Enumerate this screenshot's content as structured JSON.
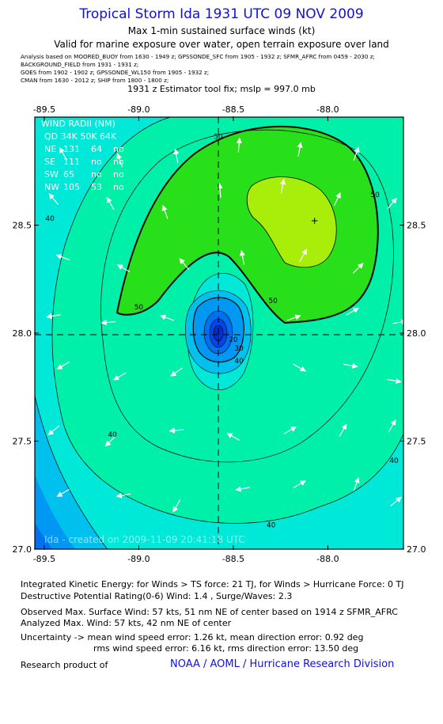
{
  "header": {
    "title": "Tropical Storm Ida 1931 UTC 09 NOV 2009",
    "subtitle1": "Max 1-min sustained surface winds (kt)",
    "subtitle2": "Valid for marine exposure over water, open terrain exposure over land",
    "sources": [
      "Analysis based on  MOORED_BUOY from 1630 - 1949 z;  GPSSONDE_SFC from 1905 - 1932 z;  SFMR_AFRC from 0459 - 2030 z;",
      "BACKGROUND_FIELD from 1931 - 1931 z;",
      "GOES from 1902 - 1902 z;  GPSSONDE_WL150 from 1905 - 1932 z;",
      "CMAN from 1630 - 2012 z;  SHIP from 1800 - 1800 z;"
    ],
    "fix_line": "1931 z Estimator tool fix; mslp = 997.0 mb"
  },
  "wind_radii": {
    "header": "WIND RADII (NM)",
    "columns": "QD  34K  50K  64K",
    "rows": [
      {
        "qd": "NE",
        "k34": "131",
        "k50": "64",
        "k64": "no"
      },
      {
        "qd": "SE",
        "k34": "111",
        "k50": "no",
        "k64": "no"
      },
      {
        "qd": "SW",
        "k34": "65",
        "k50": "no",
        "k64": "no"
      },
      {
        "qd": "NW",
        "k34": "105",
        "k50": "53",
        "k64": "no"
      }
    ]
  },
  "watermark": "Ida - created on 2009-11-09 20:41:18 UTC",
  "chart_data": {
    "type": "heatmap",
    "xlim": [
      -89.55,
      -87.6
    ],
    "ylim": [
      27.0,
      29.0
    ],
    "x_ticks": [
      "-89.5",
      "-89.0",
      "-88.5",
      "-88.0"
    ],
    "y_ticks": [
      "27.0",
      "27.5",
      "28.0",
      "28.5"
    ],
    "center": {
      "lon": -88.5,
      "lat": 28.0
    },
    "max_wind_marker": {
      "lon": -88.07,
      "lat": 28.52
    },
    "contour_labels": [
      {
        "text": "50",
        "lon": -88.58,
        "lat": 28.9
      },
      {
        "text": "50",
        "lon": -87.75,
        "lat": 28.63
      },
      {
        "text": "50",
        "lon": -89.0,
        "lat": 28.11
      },
      {
        "text": "50",
        "lon": -88.29,
        "lat": 28.14
      },
      {
        "text": "40",
        "lon": -89.47,
        "lat": 28.52
      },
      {
        "text": "40",
        "lon": -89.14,
        "lat": 27.52
      },
      {
        "text": "40",
        "lon": -88.47,
        "lat": 27.86
      },
      {
        "text": "40",
        "lon": -88.3,
        "lat": 27.1
      },
      {
        "text": "40",
        "lon": -87.65,
        "lat": 27.4
      },
      {
        "text": "30",
        "lon": -88.47,
        "lat": 27.92
      },
      {
        "text": "20",
        "lon": -88.5,
        "lat": 27.96
      }
    ],
    "colors": {
      "c20": "#0047e8",
      "c25": "#0070f0",
      "c30": "#0098f2",
      "c35": "#00c0ee",
      "c40": "#00e8d8",
      "c45": "#00f0aa",
      "c50": "#00e88a",
      "c55": "#28e01a",
      "c60": "#a8ee0a",
      "frame": "#000000"
    },
    "arrows": [
      [
        -89.4,
        28.83,
        -30
      ],
      [
        -89.1,
        28.8,
        -20
      ],
      [
        -88.8,
        28.82,
        -10
      ],
      [
        -88.47,
        28.87,
        5
      ],
      [
        -88.15,
        28.85,
        10
      ],
      [
        -87.85,
        28.83,
        20
      ],
      [
        -89.45,
        28.62,
        -40
      ],
      [
        -89.15,
        28.6,
        -30
      ],
      [
        -88.86,
        28.56,
        -20
      ],
      [
        -88.57,
        28.66,
        -5
      ],
      [
        -88.24,
        28.68,
        10
      ],
      [
        -87.95,
        28.62,
        25
      ],
      [
        -87.66,
        28.6,
        40
      ],
      [
        -89.4,
        28.35,
        -70
      ],
      [
        -89.08,
        28.3,
        -60
      ],
      [
        -88.76,
        28.32,
        -40
      ],
      [
        -88.45,
        28.35,
        -10
      ],
      [
        -88.13,
        28.36,
        30
      ],
      [
        -87.84,
        28.3,
        45
      ],
      [
        -89.45,
        28.08,
        -100
      ],
      [
        -89.16,
        28.05,
        -95
      ],
      [
        -88.85,
        28.07,
        -70
      ],
      [
        -88.18,
        28.07,
        70
      ],
      [
        -87.87,
        28.1,
        60
      ],
      [
        -87.62,
        28.05,
        80
      ],
      [
        -89.4,
        27.85,
        -120
      ],
      [
        -89.1,
        27.8,
        -120
      ],
      [
        -88.8,
        27.82,
        -125
      ],
      [
        -88.15,
        27.84,
        120
      ],
      [
        -87.88,
        27.85,
        100
      ],
      [
        -87.65,
        27.78,
        100
      ],
      [
        -89.45,
        27.55,
        -130
      ],
      [
        -89.15,
        27.5,
        -135
      ],
      [
        -88.8,
        27.55,
        -95
      ],
      [
        -88.5,
        27.52,
        -60
      ],
      [
        -88.2,
        27.55,
        60
      ],
      [
        -87.92,
        27.55,
        30
      ],
      [
        -87.66,
        27.57,
        30
      ],
      [
        -89.4,
        27.26,
        -120
      ],
      [
        -89.08,
        27.25,
        -100
      ],
      [
        -88.8,
        27.2,
        -150
      ],
      [
        -88.45,
        27.28,
        -100
      ],
      [
        -88.15,
        27.3,
        60
      ],
      [
        -87.85,
        27.3,
        20
      ],
      [
        -87.64,
        27.22,
        50
      ]
    ]
  },
  "footer": {
    "ike": "Integrated Kinetic Energy:  for Winds > TS force: 21 TJ,  for Winds > Hurricane Force: 0 TJ",
    "dpr": "Destructive Potential Rating(0-6)   Wind: 1.4 , Surge/Waves: 2.3",
    "observed": "Observed Max. Surface Wind: 57 kts, 51 nm NE of center based on 1914 z SFMR_AFRC",
    "analyzed": "Analyzed Max. Wind: 57 kts, 42 nm NE of center",
    "uncertainty1": "Uncertainty -> mean wind speed error: 1.26 kt,   mean direction error: 0.92 deg",
    "uncertainty2": "rms wind speed error: 6.16 kt,   rms direction error: 13.50 deg",
    "research_label": "Research product of",
    "org": "NOAA / AOML / Hurricane Research Division"
  }
}
